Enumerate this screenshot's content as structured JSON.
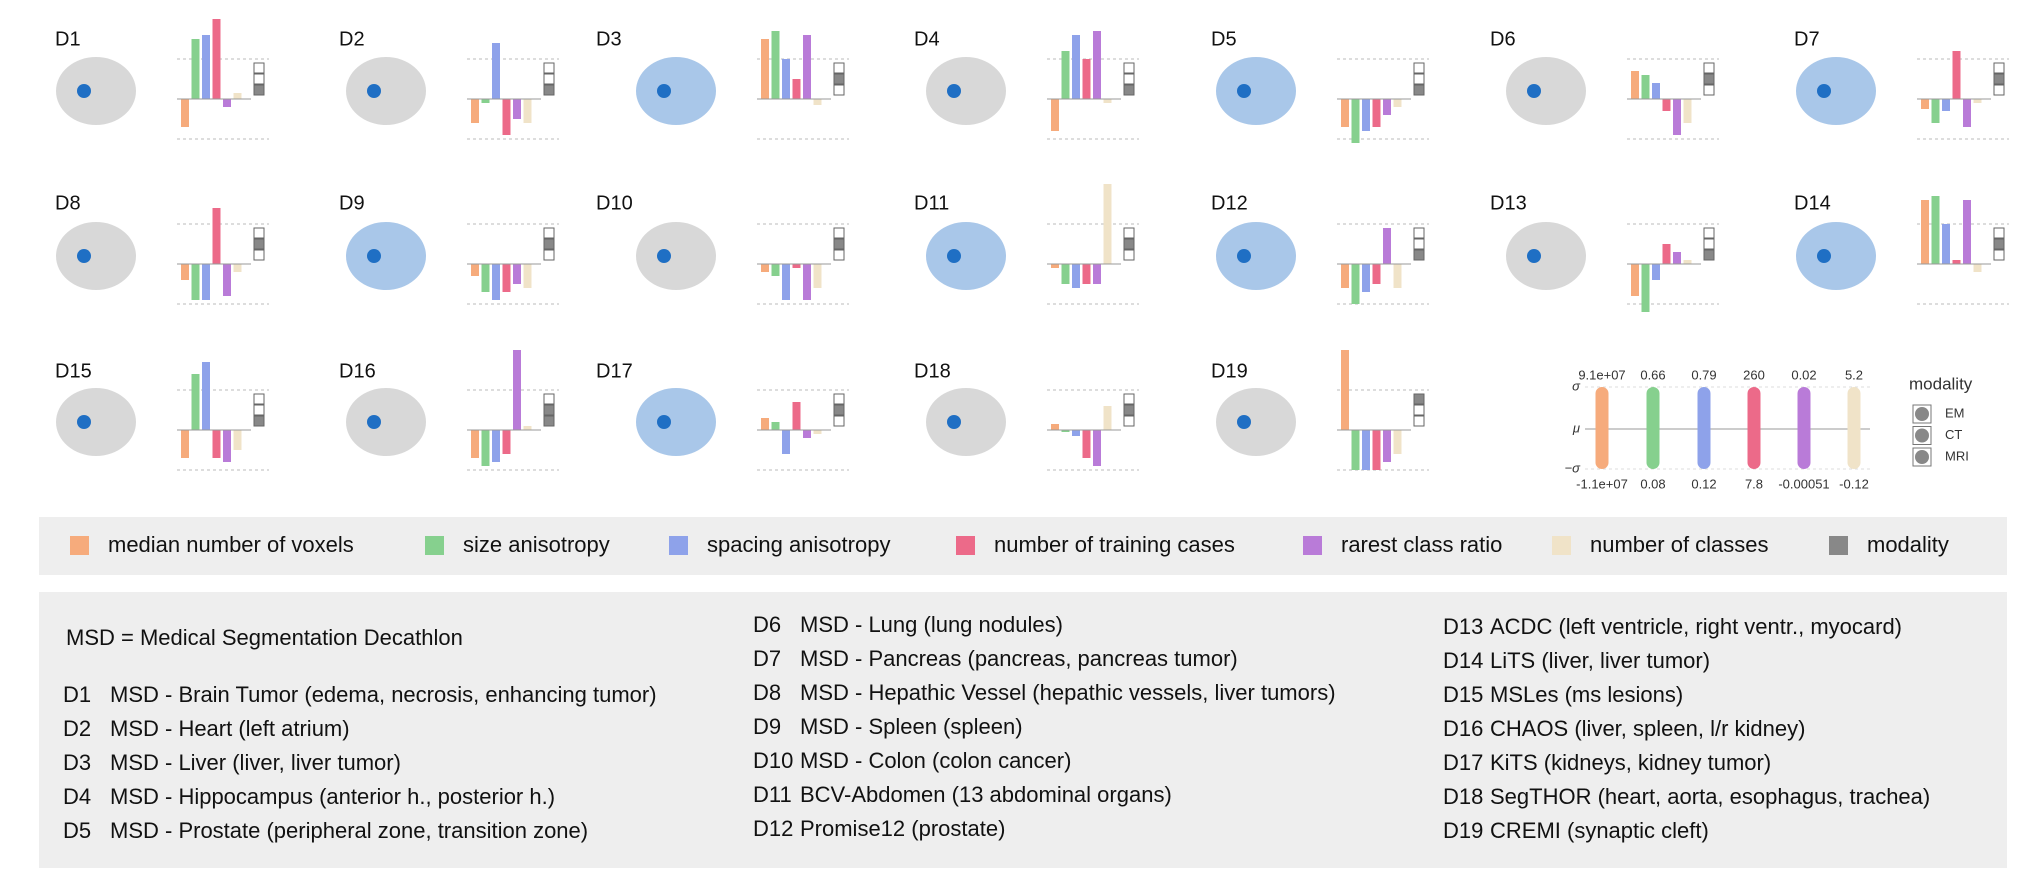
{
  "series": [
    {
      "name": "median number of voxels",
      "color": "#f6ab7c"
    },
    {
      "name": "size anisotropy",
      "color": "#86d08e"
    },
    {
      "name": "spacing anisotropy",
      "color": "#8ea2ea"
    },
    {
      "name": "number of training cases",
      "color": "#ec6a89"
    },
    {
      "name": "rarest class ratio",
      "color": "#b97bd8"
    },
    {
      "name": "number of classes",
      "color": "#f0e3c8"
    }
  ],
  "modality_legend": {
    "name": "modality",
    "color": "#888888",
    "options": [
      "EM",
      "CT",
      "MRI"
    ]
  },
  "panels": [
    {
      "label": "D1",
      "values": [
        -0.7,
        1.5,
        1.6,
        2.0,
        -0.2,
        0.15
      ],
      "modality": [
        "MRI"
      ]
    },
    {
      "label": "D2",
      "values": [
        -0.6,
        -0.1,
        1.4,
        -0.9,
        -0.5,
        -0.6
      ],
      "modality": [
        "MRI"
      ]
    },
    {
      "label": "D3",
      "values": [
        1.5,
        1.7,
        1.0,
        0.5,
        1.6,
        -0.15
      ],
      "modality": [
        "CT"
      ]
    },
    {
      "label": "D4",
      "values": [
        -0.8,
        1.2,
        1.6,
        1.0,
        1.7,
        -0.1
      ],
      "modality": [
        "MRI"
      ]
    },
    {
      "label": "D5",
      "values": [
        -0.7,
        -1.1,
        -0.8,
        -0.7,
        -0.4,
        -0.2
      ],
      "modality": [
        "MRI"
      ]
    },
    {
      "label": "D6",
      "values": [
        0.7,
        0.6,
        0.4,
        -0.3,
        -0.9,
        -0.6
      ],
      "modality": [
        "CT"
      ]
    },
    {
      "label": "D7",
      "values": [
        -0.25,
        -0.6,
        -0.3,
        1.2,
        -0.7,
        -0.1
      ],
      "modality": [
        "CT"
      ]
    },
    {
      "label": "D8",
      "values": [
        -0.4,
        -0.9,
        -0.9,
        1.4,
        -0.8,
        -0.2
      ],
      "modality": [
        "CT"
      ]
    },
    {
      "label": "D9",
      "values": [
        -0.3,
        -0.7,
        -0.9,
        -0.7,
        -0.5,
        -0.6
      ],
      "modality": [
        "CT"
      ]
    },
    {
      "label": "D10",
      "values": [
        -0.2,
        -0.3,
        -0.9,
        -0.1,
        -0.9,
        -0.6
      ],
      "modality": [
        "CT"
      ]
    },
    {
      "label": "D11",
      "values": [
        -0.1,
        -0.5,
        -0.6,
        -0.5,
        -0.5,
        2.0
      ],
      "modality": [
        "CT"
      ]
    },
    {
      "label": "D12",
      "values": [
        -0.6,
        -1.0,
        -0.7,
        -0.5,
        0.9,
        -0.6
      ],
      "modality": [
        "MRI"
      ]
    },
    {
      "label": "D13",
      "values": [
        -0.8,
        -1.2,
        -0.4,
        0.5,
        0.3,
        0.1
      ],
      "modality": [
        "MRI"
      ]
    },
    {
      "label": "D14",
      "values": [
        1.6,
        1.7,
        1.0,
        0.1,
        1.6,
        -0.2
      ],
      "modality": [
        "CT"
      ]
    },
    {
      "label": "D15",
      "values": [
        -0.7,
        1.4,
        1.7,
        -0.7,
        -0.8,
        -0.5
      ],
      "modality": [
        "MRI"
      ]
    },
    {
      "label": "D16",
      "values": [
        -0.7,
        -0.9,
        -0.8,
        -0.6,
        2.0,
        0.1
      ],
      "modality": [
        "CT",
        "MRI"
      ]
    },
    {
      "label": "D17",
      "values": [
        0.3,
        0.2,
        -0.6,
        0.7,
        -0.2,
        -0.1
      ],
      "modality": [
        "CT"
      ]
    },
    {
      "label": "D18",
      "values": [
        0.15,
        -0.05,
        -0.15,
        -0.7,
        -0.9,
        0.6
      ],
      "modality": [
        "CT"
      ]
    },
    {
      "label": "D19",
      "values": [
        2.0,
        -1.0,
        -1.0,
        -1.0,
        -0.8,
        -0.6
      ],
      "modality": [
        "EM"
      ]
    }
  ],
  "key": {
    "levels": [
      "σ",
      "μ",
      "−σ"
    ],
    "top": [
      "9.1e+07",
      "0.66",
      "0.79",
      "260",
      "0.02",
      "5.2"
    ],
    "bottom": [
      "-1.1e+07",
      "0.08",
      "0.12",
      "7.8",
      "-0.00051",
      "-0.12"
    ]
  },
  "descriptions": {
    "note": "MSD = Medical Segmentation Decathlon",
    "items": [
      {
        "id": "D1",
        "text": "MSD - Brain Tumor (edema, necrosis, enhancing tumor)"
      },
      {
        "id": "D2",
        "text": "MSD - Heart (left atrium)"
      },
      {
        "id": "D3",
        "text": "MSD - Liver (liver, liver tumor)"
      },
      {
        "id": "D4",
        "text": "MSD - Hippocampus (anterior h., posterior h.)"
      },
      {
        "id": "D5",
        "text": "MSD - Prostate (peripheral zone, transition zone)"
      },
      {
        "id": "D6",
        "text": "MSD - Lung (lung nodules)"
      },
      {
        "id": "D7",
        "text": "MSD - Pancreas (pancreas, pancreas tumor)"
      },
      {
        "id": "D8",
        "text": "MSD - Hepathic Vessel (hepathic vessels, liver tumors)"
      },
      {
        "id": "D9",
        "text": "MSD - Spleen (spleen)"
      },
      {
        "id": "D10",
        "text": "MSD - Colon (colon cancer)"
      },
      {
        "id": "D11",
        "text": "BCV-Abdomen (13 abdominal organs)"
      },
      {
        "id": "D12",
        "text": "Promise12 (prostate)"
      },
      {
        "id": "D13",
        "text": "ACDC (left ventricle, right ventr., myocard)"
      },
      {
        "id": "D14",
        "text": "LiTS (liver, liver tumor)"
      },
      {
        "id": "D15",
        "text": "MSLes (ms lesions)"
      },
      {
        "id": "D16",
        "text": "CHAOS (liver, spleen, l/r kidney)"
      },
      {
        "id": "D17",
        "text": "KiTS (kidneys, kidney tumor)"
      },
      {
        "id": "D18",
        "text": "SegTHOR (heart, aorta, esophagus, trachea)"
      },
      {
        "id": "D19",
        "text": "CREMI (synaptic cleft)"
      }
    ]
  }
}
